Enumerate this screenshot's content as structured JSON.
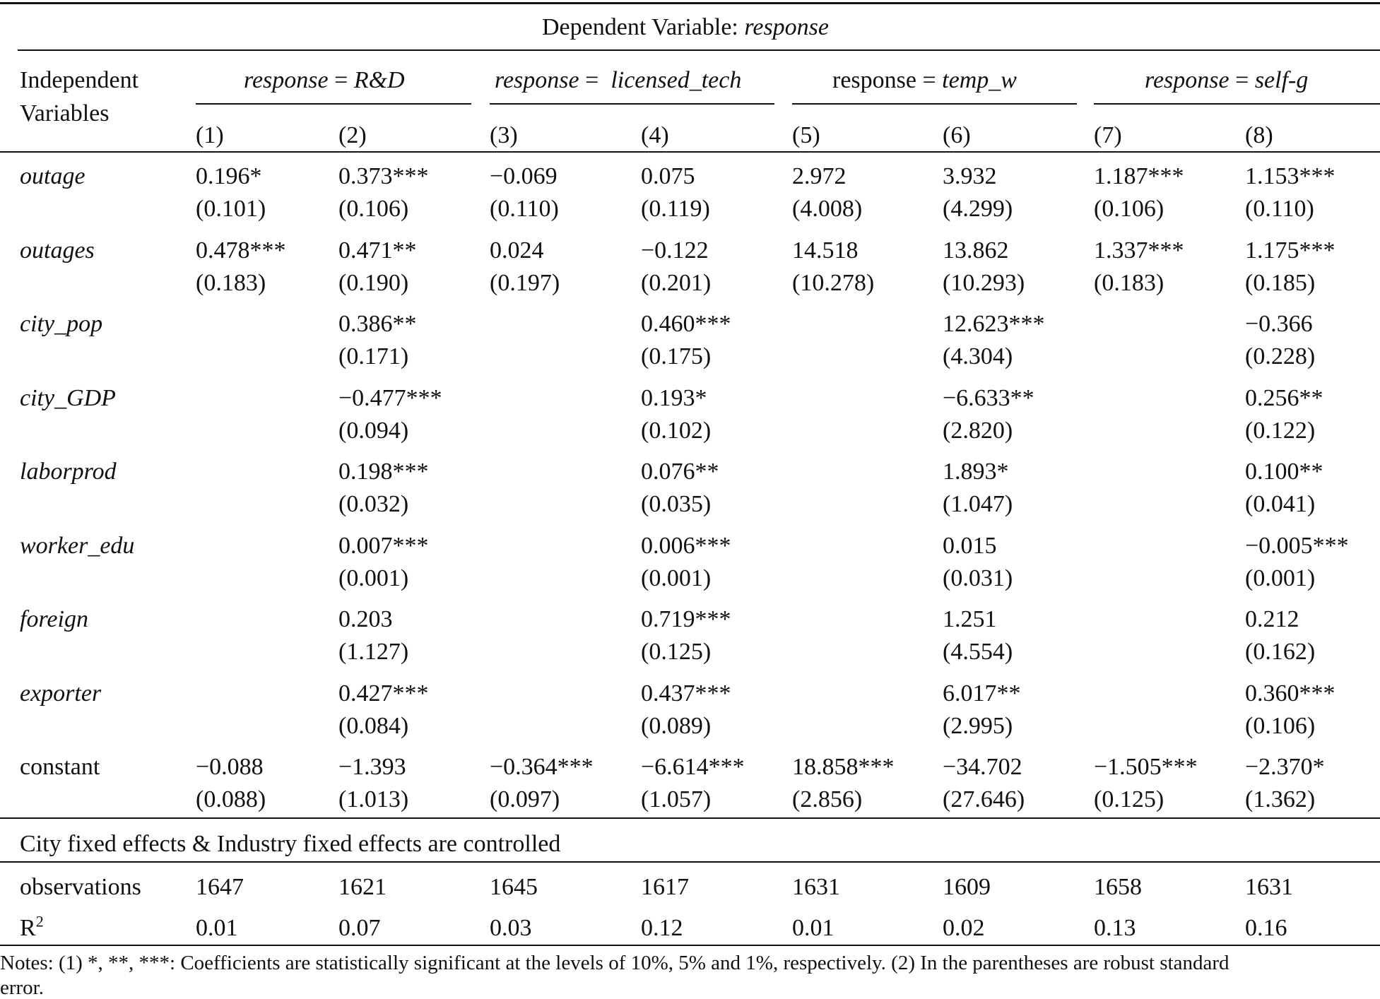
{
  "header": {
    "dependent_variable_label": "Dependent Variable: ",
    "dependent_variable_name": "response",
    "independent_variables_label_1": "Independent",
    "independent_variables_label_2": "Variables",
    "groups": [
      {
        "prefix": "response",
        "eq": " = ",
        "name": "R&D",
        "prefix_italic": true
      },
      {
        "prefix": "response",
        "eq": " =  ",
        "name": "licensed_tech",
        "prefix_italic": true
      },
      {
        "prefix": "response",
        "eq": " = ",
        "name": "temp_w",
        "prefix_italic": false
      },
      {
        "prefix": "response",
        "eq": " = ",
        "name": "self-g",
        "prefix_italic": true
      }
    ],
    "columns": [
      "(1)",
      "(2)",
      "(3)",
      "(4)",
      "(5)",
      "(6)",
      "(7)",
      "(8)"
    ]
  },
  "rows": [
    {
      "name": "outage",
      "italic": true,
      "coef": [
        "0.196*",
        "0.373***",
        "−0.069",
        "0.075",
        "2.972",
        "3.932",
        "1.187***",
        "1.153***"
      ],
      "se": [
        "(0.101)",
        "(0.106)",
        "(0.110)",
        "(0.119)",
        "(4.008)",
        "(4.299)",
        "(0.106)",
        "(0.110)"
      ]
    },
    {
      "name": "outages",
      "italic": true,
      "coef": [
        "0.478***",
        "0.471**",
        "0.024",
        "−0.122",
        "14.518",
        "13.862",
        "1.337***",
        "1.175***"
      ],
      "se": [
        "(0.183)",
        "(0.190)",
        "(0.197)",
        "(0.201)",
        "(10.278)",
        "(10.293)",
        "(0.183)",
        "(0.185)"
      ]
    },
    {
      "name": "city_pop",
      "italic": true,
      "coef": [
        "",
        "0.386**",
        "",
        "0.460***",
        "",
        "12.623***",
        "",
        "−0.366"
      ],
      "se": [
        "",
        "(0.171)",
        "",
        "(0.175)",
        "",
        "(4.304)",
        "",
        "(0.228)"
      ]
    },
    {
      "name": "city_GDP",
      "italic": true,
      "coef": [
        "",
        "−0.477***",
        "",
        "0.193*",
        "",
        "−6.633**",
        "",
        "0.256**"
      ],
      "se": [
        "",
        "(0.094)",
        "",
        "(0.102)",
        "",
        "(2.820)",
        "",
        "(0.122)"
      ]
    },
    {
      "name": "laborprod",
      "italic": true,
      "coef": [
        "",
        "0.198***",
        "",
        "0.076**",
        "",
        "1.893*",
        "",
        "0.100**"
      ],
      "se": [
        "",
        "(0.032)",
        "",
        "(0.035)",
        "",
        "(1.047)",
        "",
        "(0.041)"
      ]
    },
    {
      "name": "worker_edu",
      "italic": true,
      "coef": [
        "",
        "0.007***",
        "",
        "0.006***",
        "",
        "0.015",
        "",
        "−0.005***"
      ],
      "se": [
        "",
        "(0.001)",
        "",
        "(0.001)",
        "",
        "(0.031)",
        "",
        "(0.001)"
      ]
    },
    {
      "name": "foreign",
      "italic": true,
      "coef": [
        "",
        "0.203",
        "",
        "0.719***",
        "",
        "1.251",
        "",
        "0.212"
      ],
      "se": [
        "",
        "(1.127)",
        "",
        "(0.125)",
        "",
        "(4.554)",
        "",
        "(0.162)"
      ]
    },
    {
      "name": "exporter",
      "italic": true,
      "coef": [
        "",
        "0.427***",
        "",
        "0.437***",
        "",
        "6.017**",
        "",
        "0.360***"
      ],
      "se": [
        "",
        "(0.084)",
        "",
        "(0.089)",
        "",
        "(2.995)",
        "",
        "(0.106)"
      ]
    },
    {
      "name": "constant",
      "italic": false,
      "coef": [
        "−0.088",
        "−1.393",
        "−0.364***",
        "−6.614***",
        "18.858***",
        "−34.702",
        "−1.505***",
        "−2.370*"
      ],
      "se": [
        "(0.088)",
        "(1.013)",
        "(0.097)",
        "(1.057)",
        "(2.856)",
        "(27.646)",
        "(0.125)",
        "(1.362)"
      ]
    }
  ],
  "fixed_effects_note": "City fixed effects & Industry fixed effects are controlled",
  "observations": {
    "label": "observations",
    "values": [
      "1647",
      "1621",
      "1645",
      "1617",
      "1631",
      "1609",
      "1658",
      "1631"
    ]
  },
  "r2": {
    "label": "R",
    "sup": "2",
    "values": [
      "0.01",
      "0.07",
      "0.03",
      "0.12",
      "0.01",
      "0.02",
      "0.13",
      "0.16"
    ]
  },
  "notes": {
    "line1": "Notes: (1) *, **, ***: Coefficients are statistically significant at the levels of 10%, 5% and 1%, respectively. (2) In the parentheses are robust standard",
    "line2": "error."
  }
}
